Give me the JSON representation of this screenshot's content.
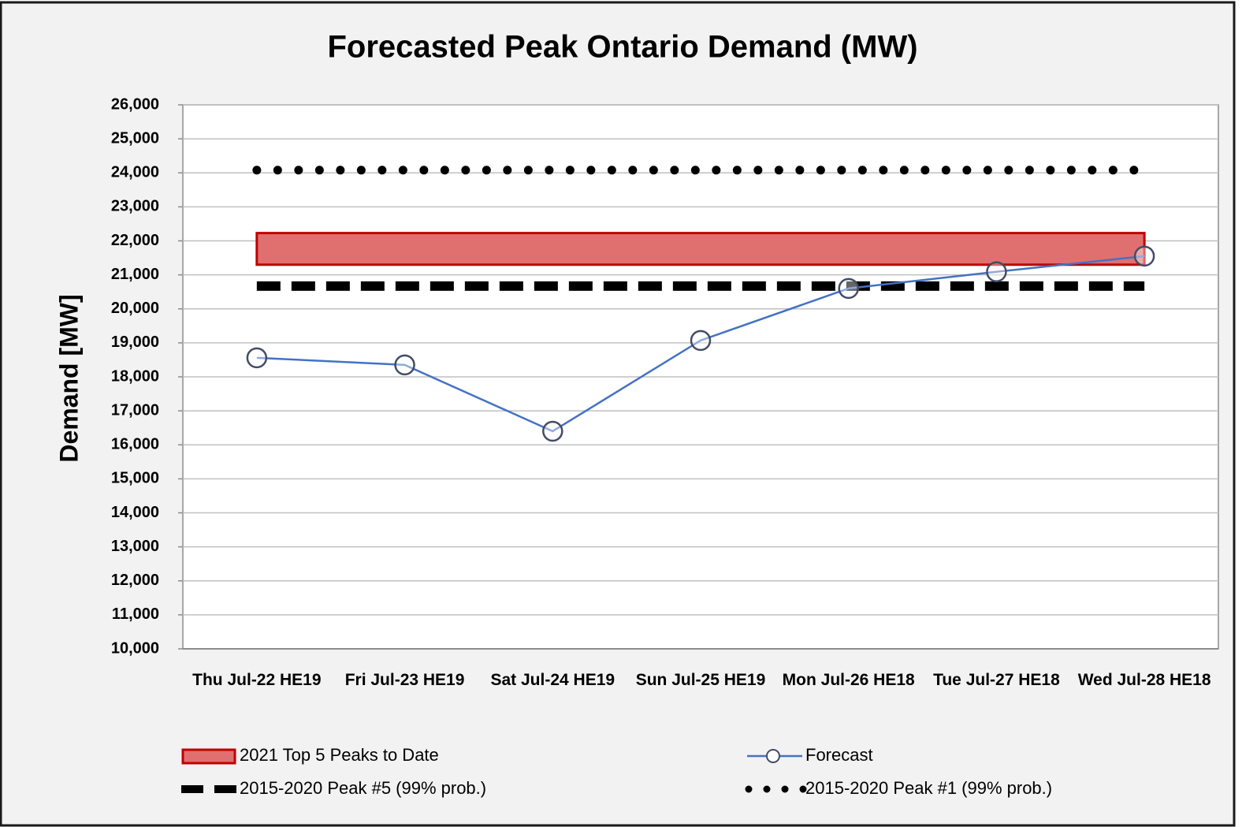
{
  "chart_data": {
    "type": "line",
    "title": "Forecasted Peak Ontario Demand (MW)",
    "y_label": "Demand [MW]",
    "categories": [
      "Thu Jul-22 HE19",
      "Fri Jul-23 HE19",
      "Sat Jul-24 HE19",
      "Sun Jul-25 HE19",
      "Mon Jul-26 HE18",
      "Tue Jul-27 HE18",
      "Wed Jul-28 HE18"
    ],
    "ylim": [
      10000,
      26000
    ],
    "yticks": [
      {
        "value": 10000,
        "label": "10,000"
      },
      {
        "value": 11000,
        "label": "11,000"
      },
      {
        "value": 12000,
        "label": "12,000"
      },
      {
        "value": 13000,
        "label": "13,000"
      },
      {
        "value": 14000,
        "label": "14,000"
      },
      {
        "value": 15000,
        "label": "15,000"
      },
      {
        "value": 16000,
        "label": "16,000"
      },
      {
        "value": 17000,
        "label": "17,000"
      },
      {
        "value": 18000,
        "label": "18,000"
      },
      {
        "value": 19000,
        "label": "19,000"
      },
      {
        "value": 20000,
        "label": "20,000"
      },
      {
        "value": 21000,
        "label": "21,000"
      },
      {
        "value": 22000,
        "label": "22,000"
      },
      {
        "value": 23000,
        "label": "23,000"
      },
      {
        "value": 24000,
        "label": "24,000"
      },
      {
        "value": 25000,
        "label": "25,000"
      },
      {
        "value": 26000,
        "label": "26,000"
      }
    ],
    "grid": true,
    "series": [
      {
        "name": "2021 Top 5 Peaks to Date",
        "kind": "band",
        "color": "#c00000",
        "fill": "#e07070",
        "low": [
          21300,
          21300,
          21300,
          21300,
          21300,
          21300,
          21300
        ],
        "high": [
          22230,
          22230,
          22230,
          22230,
          22230,
          22230,
          22230
        ]
      },
      {
        "name": "Forecast",
        "kind": "line",
        "color": "#4472c4",
        "marker_color": "#434c66",
        "values": [
          18560,
          18350,
          16400,
          19070,
          20600,
          21090,
          21550
        ]
      },
      {
        "name": "2015-2020 Peak #5 (99% prob.)",
        "kind": "dashed",
        "color": "#000000",
        "values": [
          20670,
          20670,
          20670,
          20670,
          20670,
          20670,
          20670
        ]
      },
      {
        "name": "2015-2020 Peak #1 (99% prob.)",
        "kind": "dotted",
        "color": "#000000",
        "values": [
          24080,
          24080,
          24080,
          24080,
          24080,
          24080,
          24080
        ]
      }
    ]
  }
}
